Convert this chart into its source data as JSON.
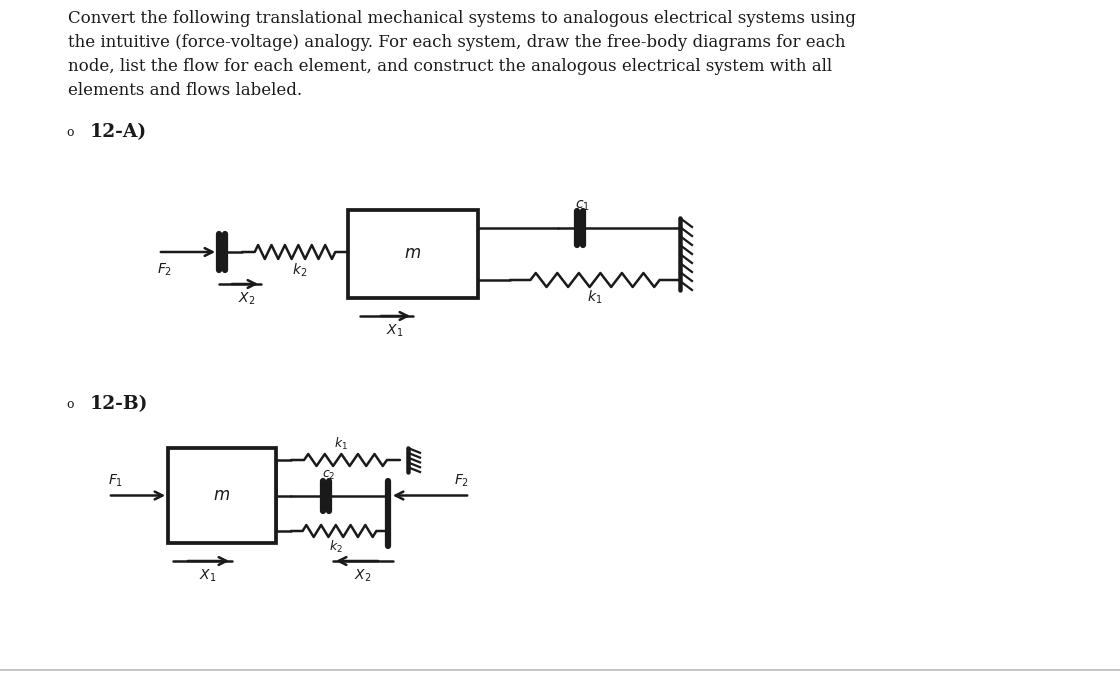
{
  "title_text": "Convert the following translational mechanical systems to analogous electrical systems using\nthe intuitive (force-voltage) analogy. For each system, draw the free-body diagrams for each\nnode, list the flow for each element, and construct the analogous electrical system with all\nelements and flows labeled.",
  "label_12A": "12-A)",
  "label_12B": "12-B)",
  "bg_color": "#ffffff",
  "line_color": "#1a1a1a",
  "text_color": "#1a1a1a",
  "title_fontsize": 12.0,
  "label_fontsize": 13.5,
  "circ_fontsize": 10
}
